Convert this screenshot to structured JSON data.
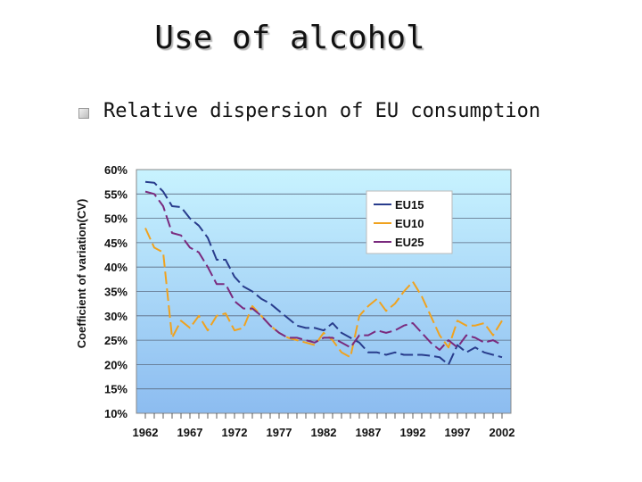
{
  "slide": {
    "title": "Use of alcohol",
    "bullet": "Relative dispersion of EU consumption"
  },
  "colors": {
    "EU15": "#283c8c",
    "EU10": "#f0a21e",
    "EU25": "#7a2a7e"
  },
  "chart_data": {
    "type": "line",
    "title": "",
    "xlabel": "",
    "ylabel": "Coefficient of variation(CV)",
    "ylim": [
      10,
      60
    ],
    "xlim": [
      1961,
      2003
    ],
    "yticks": [
      "10%",
      "15%",
      "20%",
      "25%",
      "30%",
      "35%",
      "40%",
      "45%",
      "50%",
      "55%",
      "60%"
    ],
    "xticks": [
      "1962",
      "1967",
      "1972",
      "1977",
      "1982",
      "1987",
      "1992",
      "1997",
      "2002"
    ],
    "legend_position": "top-right",
    "series": [
      {
        "name": "EU15",
        "x": [
          1962,
          1963,
          1964,
          1965,
          1966,
          1967,
          1968,
          1969,
          1970,
          1971,
          1972,
          1973,
          1974,
          1975,
          1976,
          1977,
          1978,
          1979,
          1980,
          1981,
          1982,
          1983,
          1984,
          1985,
          1986,
          1987,
          1988,
          1989,
          1990,
          1991,
          1992,
          1993,
          1994,
          1995,
          1996,
          1997,
          1998,
          1999,
          2000,
          2001,
          2002
        ],
        "values": [
          57.5,
          57.3,
          55.5,
          52.5,
          52.3,
          50,
          48.5,
          46,
          41.5,
          41.5,
          38,
          36,
          35,
          33.5,
          32.5,
          31,
          29.5,
          28,
          27.5,
          27.5,
          27,
          28.5,
          26.5,
          25.5,
          24.5,
          22.5,
          22.5,
          22,
          22.5,
          22,
          22,
          22,
          21.8,
          21.5,
          20,
          24,
          22.5,
          23.5,
          22.5,
          22,
          21.5
        ]
      },
      {
        "name": "EU10",
        "x": [
          1962,
          1963,
          1964,
          1965,
          1966,
          1967,
          1968,
          1969,
          1970,
          1971,
          1972,
          1973,
          1974,
          1975,
          1976,
          1977,
          1978,
          1979,
          1980,
          1981,
          1982,
          1983,
          1984,
          1985,
          1986,
          1987,
          1988,
          1989,
          1990,
          1991,
          1992,
          1993,
          1994,
          1995,
          1996,
          1997,
          1998,
          1999,
          2000,
          2001,
          2002
        ],
        "values": [
          48,
          44,
          43,
          25.5,
          29,
          27.5,
          30,
          27,
          30,
          30.5,
          27,
          27.5,
          32,
          30,
          28,
          26.5,
          25.5,
          25,
          24.5,
          24,
          26.5,
          25,
          22.5,
          21.5,
          30,
          32,
          33.5,
          31,
          32.5,
          35,
          37,
          34,
          30,
          26,
          23.5,
          29,
          28,
          28,
          28.5,
          26,
          29
        ]
      },
      {
        "name": "EU25",
        "x": [
          1962,
          1963,
          1964,
          1965,
          1966,
          1967,
          1968,
          1969,
          1970,
          1971,
          1972,
          1973,
          1974,
          1975,
          1976,
          1977,
          1978,
          1979,
          1980,
          1981,
          1982,
          1983,
          1984,
          1985,
          1986,
          1987,
          1988,
          1989,
          1990,
          1991,
          1992,
          1993,
          1994,
          1995,
          1996,
          1997,
          1998,
          1999,
          2000,
          2001,
          2002
        ],
        "values": [
          55.5,
          55,
          52.5,
          47,
          46.5,
          44,
          43,
          40,
          36.5,
          36.5,
          33,
          31.5,
          31.5,
          30,
          28,
          26.5,
          25.5,
          25.5,
          25,
          24.5,
          25.5,
          25.5,
          24.5,
          23.5,
          26,
          26,
          27,
          26.5,
          27,
          28,
          28.5,
          26.5,
          24.5,
          23,
          25,
          23.5,
          26,
          25.5,
          24.5,
          25,
          24
        ]
      }
    ]
  }
}
